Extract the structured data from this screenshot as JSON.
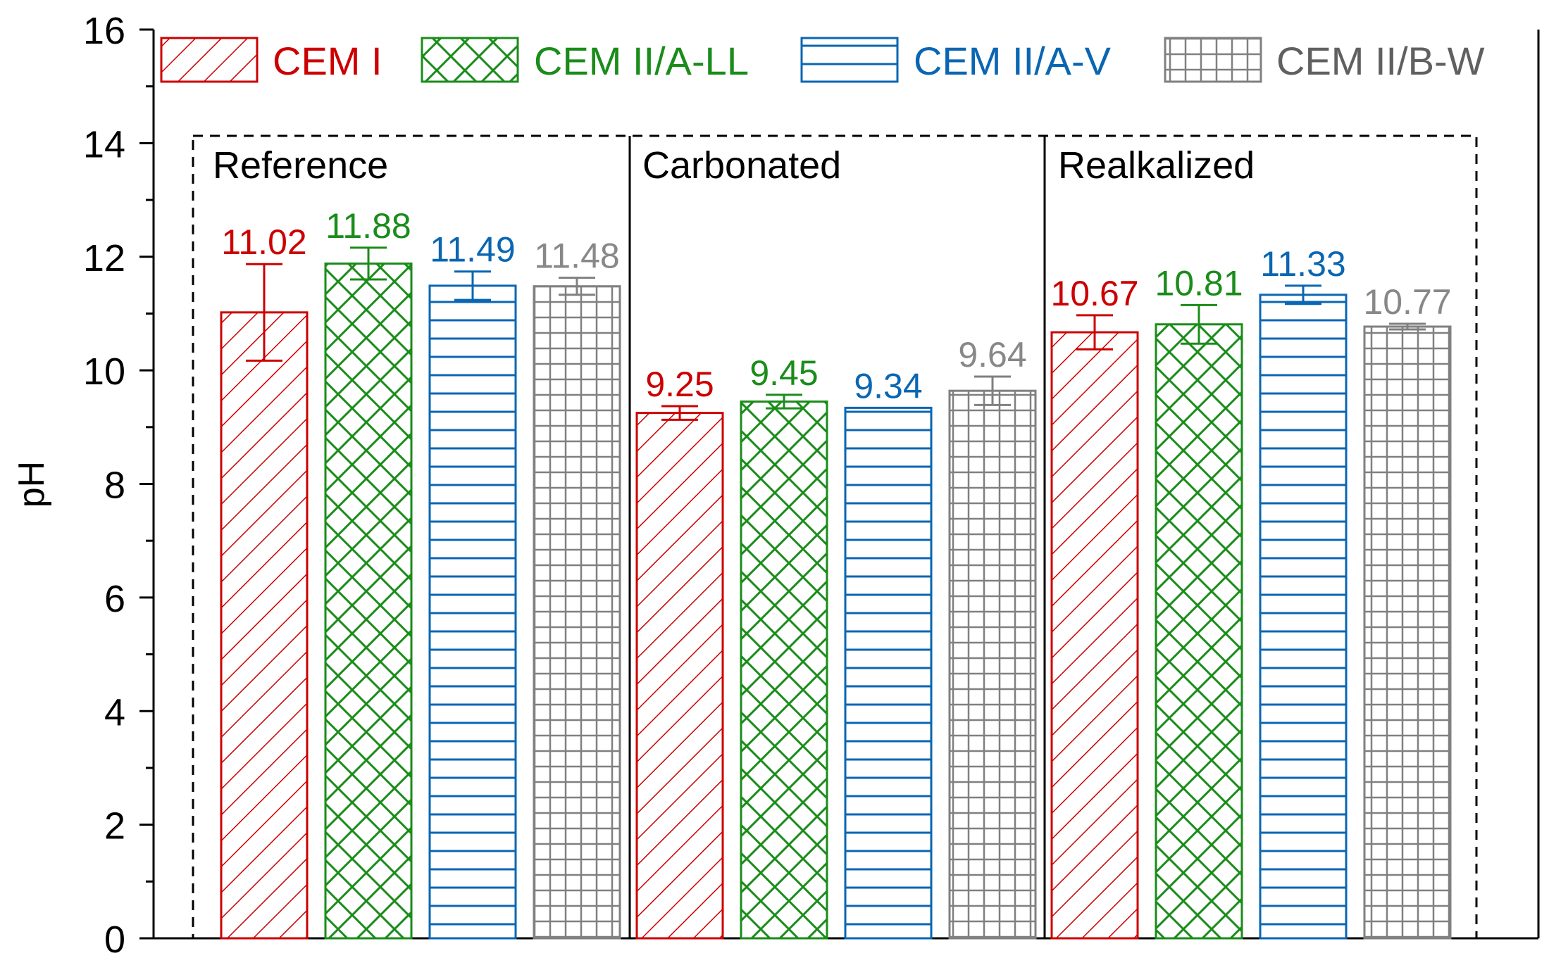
{
  "chart_data": {
    "type": "bar",
    "title": "",
    "xlabel": "",
    "ylabel": "pH",
    "ylim": [
      0,
      16
    ],
    "y_ticks": [
      "0",
      "2",
      "4",
      "6",
      "8",
      "10",
      "12",
      "14",
      "16"
    ],
    "grid": false,
    "legend_position": "top",
    "groups": [
      "Reference",
      "Carbonated",
      "Realkalized"
    ],
    "series": [
      {
        "name": "CEM I",
        "color": "#cc0000",
        "pattern": "diagonal",
        "values": [
          11.02,
          9.25,
          10.67
        ],
        "errors": [
          0.85,
          0.12,
          0.3
        ],
        "labels": [
          "11.02",
          "9.25",
          "10.67"
        ]
      },
      {
        "name": "CEM II/A-LL",
        "color": "#1a8c1a",
        "pattern": "crosshatch",
        "values": [
          11.88,
          9.45,
          10.81
        ],
        "errors": [
          0.28,
          0.12,
          0.34
        ],
        "labels": [
          "11.88",
          "9.45",
          "10.81"
        ]
      },
      {
        "name": "CEM II/A-V",
        "color": "#0a66b3",
        "pattern": "horizontal",
        "values": [
          11.49,
          9.34,
          11.33
        ],
        "errors": [
          0.25,
          0.0,
          0.16
        ],
        "labels": [
          "11.49",
          "9.34",
          "11.33"
        ]
      },
      {
        "name": "CEM II/B-W",
        "color": "#808080",
        "pattern": "grid",
        "values": [
          11.48,
          9.64,
          10.77
        ],
        "errors": [
          0.15,
          0.25,
          0.05
        ],
        "labels": [
          "11.48",
          "9.64",
          "10.77"
        ]
      }
    ]
  }
}
